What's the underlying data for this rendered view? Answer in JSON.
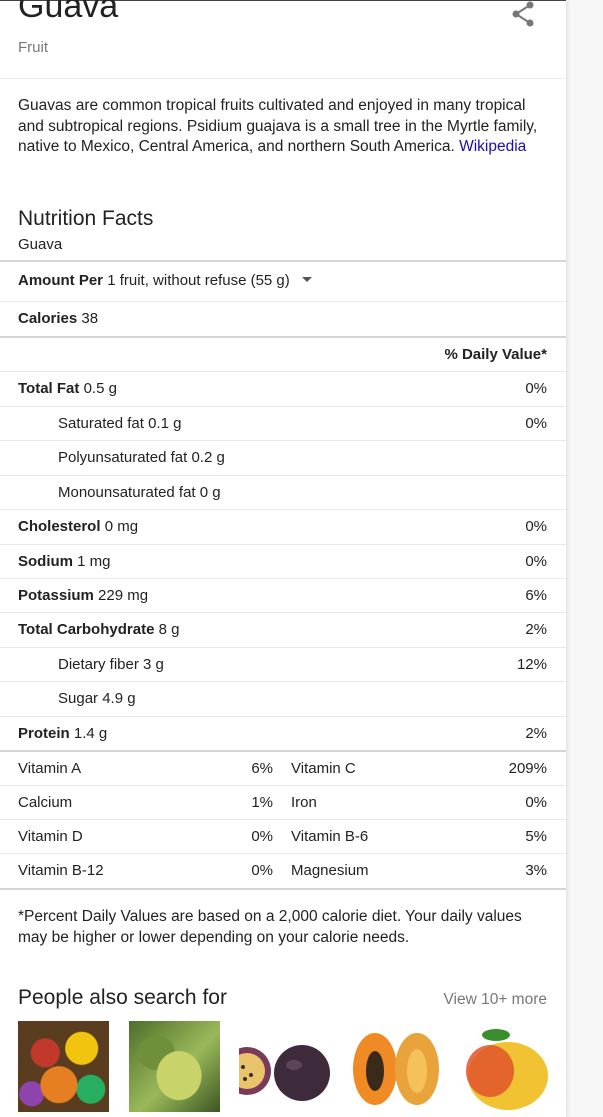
{
  "header": {
    "title": "Guava",
    "subtitle": "Fruit"
  },
  "description": {
    "text": "Guavas are common tropical fruits cultivated and enjoyed in many tropical and subtropical regions. Psidium guajava is a small tree in the Myrtle family, native to Mexico, Central America, and northern South America. ",
    "link": "Wikipedia"
  },
  "nutrition": {
    "title": "Nutrition Facts",
    "subtitle": "Guava",
    "amount_label": "Amount Per",
    "amount_value": "1 fruit, without refuse (55 g)",
    "calories_label": "Calories",
    "calories_value": "38",
    "dv_header": "% Daily Value*",
    "rows": [
      {
        "label": "Total Fat",
        "value": "0.5 g",
        "pct": "0%"
      },
      {
        "label": "Saturated fat",
        "value": "0.1 g",
        "pct": "0%"
      },
      {
        "label": "Polyunsaturated fat",
        "value": "0.2 g",
        "pct": ""
      },
      {
        "label": "Monounsaturated fat",
        "value": "0 g",
        "pct": ""
      },
      {
        "label": "Cholesterol",
        "value": "0 mg",
        "pct": "0%"
      },
      {
        "label": "Sodium",
        "value": "1 mg",
        "pct": "0%"
      },
      {
        "label": "Potassium",
        "value": "229 mg",
        "pct": "6%"
      },
      {
        "label": "Total Carbohydrate",
        "value": "8 g",
        "pct": "2%"
      },
      {
        "label": "Dietary fiber",
        "value": "3 g",
        "pct": "12%"
      },
      {
        "label": "Sugar",
        "value": "4.9 g",
        "pct": ""
      },
      {
        "label": "Protein",
        "value": "1.4 g",
        "pct": "2%"
      }
    ],
    "vitamins": [
      {
        "n1": "Vitamin A",
        "p1": "6%",
        "n2": "Vitamin C",
        "p2": "209%"
      },
      {
        "n1": "Calcium",
        "p1": "1%",
        "n2": "Iron",
        "p2": "0%"
      },
      {
        "n1": "Vitamin D",
        "p1": "0%",
        "n2": "Vitamin B-6",
        "p2": "5%"
      },
      {
        "n1": "Vitamin B-12",
        "p1": "0%",
        "n2": "Magnesium",
        "p2": "3%"
      }
    ],
    "footnote": "*Percent Daily Values are based on a 2,000 calorie diet. Your daily values may be higher or lower depending on your calorie needs."
  },
  "people_also_search": {
    "title": "People also search for",
    "view_more": "View 10+ more"
  },
  "icons": {
    "share": "share-icon",
    "caret": "chevron-down-icon"
  },
  "colors": {
    "link": "#1a0dab",
    "muted": "#777777"
  }
}
